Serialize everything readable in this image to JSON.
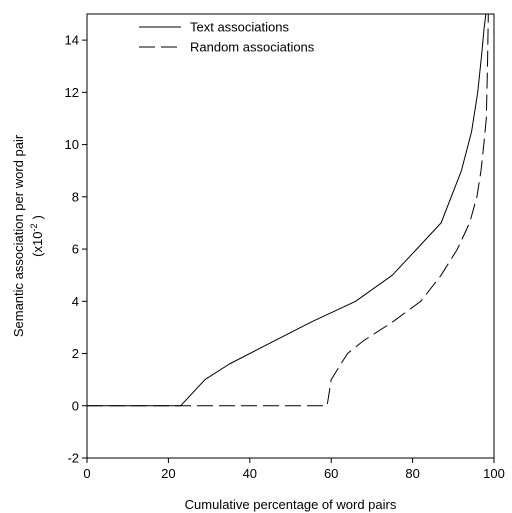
{
  "chart_data": {
    "type": "line",
    "title": "",
    "xlabel": "Cumulative percentage of word pairs",
    "ylabel_line1": "Semantic association per word pair",
    "ylabel_line2_prefix": "(x10",
    "ylabel_line2_exponent": "-2",
    "ylabel_line2_suffix": ")",
    "xlim": [
      0,
      100
    ],
    "ylim": [
      -2,
      15
    ],
    "xticks": [
      0,
      20,
      40,
      60,
      80,
      100
    ],
    "yticks": [
      -2,
      0,
      2,
      4,
      6,
      8,
      10,
      12,
      14
    ],
    "grid": false,
    "legend_position": "top-left",
    "series": [
      {
        "name": "Text associations",
        "style": "solid",
        "color": "#000000",
        "x": [
          0,
          23,
          29,
          35,
          45,
          55,
          66,
          75,
          81,
          87,
          92,
          94.5,
          96,
          97,
          97.6,
          98
        ],
        "y": [
          0,
          0,
          1,
          1.6,
          2.4,
          3.2,
          4,
          5,
          6,
          7,
          9,
          10.5,
          12,
          13.5,
          14.5,
          15
        ]
      },
      {
        "name": "Random associations",
        "style": "dashed",
        "color": "#000000",
        "x": [
          0,
          59,
          60,
          62,
          64,
          68,
          75,
          82,
          87,
          91,
          94,
          95.8,
          96.8,
          97.5,
          98.1,
          98.4,
          98.6
        ],
        "y": [
          0,
          0,
          1,
          1.5,
          2,
          2.5,
          3.2,
          4,
          5,
          6,
          7,
          8,
          9,
          10,
          11,
          13,
          15
        ]
      }
    ]
  }
}
